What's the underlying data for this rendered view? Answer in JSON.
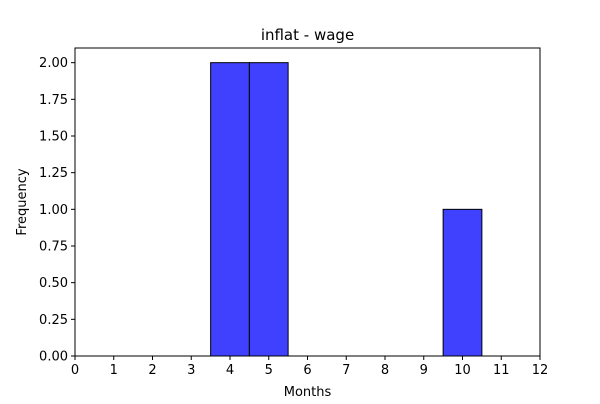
{
  "chart_data": {
    "type": "bar",
    "title": "inflat - wage",
    "xlabel": "Months",
    "ylabel": "Frequency",
    "xlim": [
      0,
      12
    ],
    "ylim": [
      0,
      2.1
    ],
    "xticks": [
      "0",
      "1",
      "2",
      "3",
      "4",
      "5",
      "6",
      "7",
      "8",
      "9",
      "10",
      "11",
      "12"
    ],
    "yticks": [
      "0.00",
      "0.25",
      "0.50",
      "0.75",
      "1.00",
      "1.25",
      "1.50",
      "1.75",
      "2.00"
    ],
    "bars": [
      {
        "x_start": 3.5,
        "x_end": 4.5,
        "value": 2
      },
      {
        "x_start": 4.5,
        "x_end": 5.5,
        "value": 2
      },
      {
        "x_start": 5.5,
        "x_end": 6.5,
        "value": 0
      },
      {
        "x_start": 6.5,
        "x_end": 7.5,
        "value": 0
      },
      {
        "x_start": 7.5,
        "x_end": 8.5,
        "value": 0
      },
      {
        "x_start": 8.5,
        "x_end": 9.5,
        "value": 0
      },
      {
        "x_start": 9.5,
        "x_end": 10.5,
        "value": 1
      }
    ],
    "grid": false,
    "colors": {
      "bar_fill": "#4040ff",
      "bar_edge": "#000000"
    }
  }
}
